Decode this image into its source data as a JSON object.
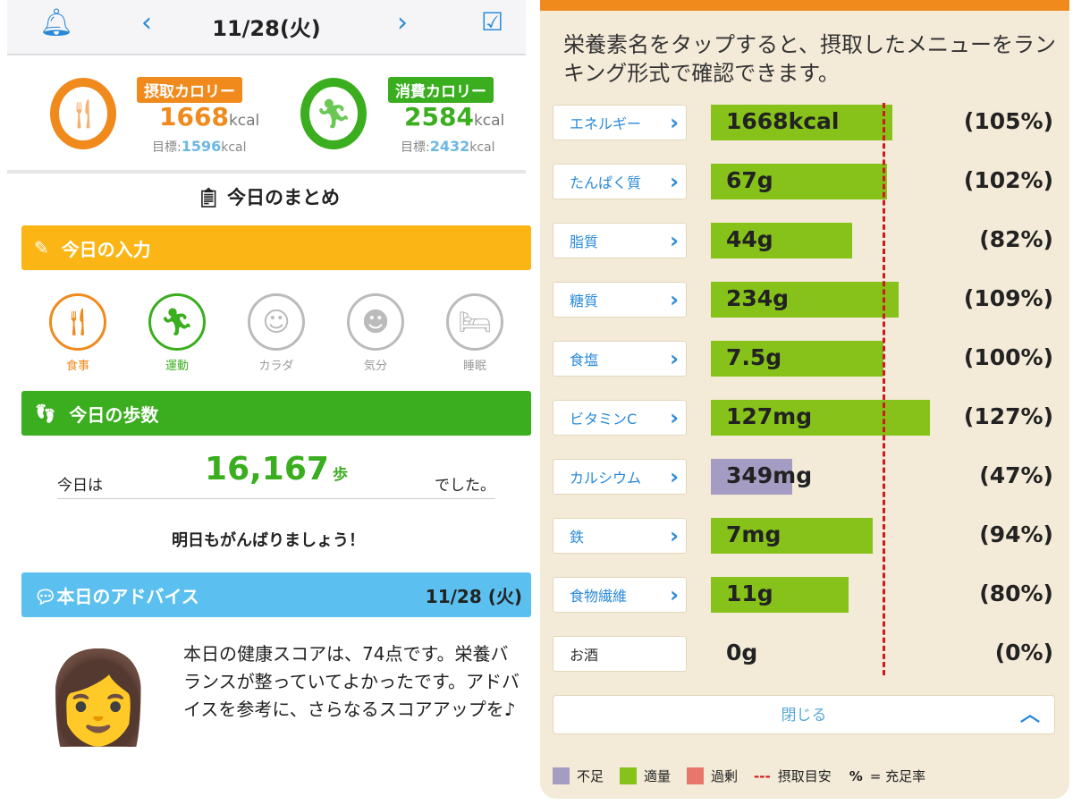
{
  "header": {
    "date": "11/28(火)"
  },
  "calories": {
    "intake": {
      "label": "摂取カロリー",
      "value": "1668",
      "unit": "kcal",
      "goal_label": "目標:",
      "goal": "1596",
      "goal_unit": "kcal",
      "color": "#f08a1c"
    },
    "burned": {
      "label": "消費カロリー",
      "value": "2584",
      "unit": "kcal",
      "goal_label": "目標:",
      "goal": "2432",
      "goal_unit": "kcal",
      "color": "#3aae1e"
    }
  },
  "summary_title": "今日のまとめ",
  "input_section": {
    "title": "今日の入力",
    "items": [
      {
        "label": "食事",
        "color": "#f08a1c"
      },
      {
        "label": "運動",
        "color": "#3aae1e"
      },
      {
        "label": "カラダ",
        "color": "#bbbbbb"
      },
      {
        "label": "気分",
        "color": "#bbbbbb"
      },
      {
        "label": "睡眠",
        "color": "#bbbbbb"
      }
    ]
  },
  "steps": {
    "title": "今日の歩数",
    "prefix": "今日は",
    "value": "16,167",
    "unit": "歩",
    "suffix": "でした。",
    "message": "明日もがんばりましょう！"
  },
  "advice": {
    "title": "本日のアドバイス",
    "date": "11/28 (火)",
    "text": "本日の健康スコアは、74点です。栄養バランスが整っていてよかったです。アドバイスを参考に、さらなるスコアアップを♪"
  },
  "nutrients": {
    "instruction": "栄養素名をタップすると、摂取したメニューをランキング形式で確認できます。",
    "items": [
      {
        "name": "エネルギー",
        "value": "1668kcal",
        "percent": 105,
        "pct_label": "(105%)",
        "status": "適量"
      },
      {
        "name": "たんぱく質",
        "value": "67g",
        "percent": 102,
        "pct_label": "(102%)",
        "status": "適量"
      },
      {
        "name": "脂質",
        "value": "44g",
        "percent": 82,
        "pct_label": "(82%)",
        "status": "適量"
      },
      {
        "name": "糖質",
        "value": "234g",
        "percent": 109,
        "pct_label": "(109%)",
        "status": "適量"
      },
      {
        "name": "食塩",
        "value": "7.5g",
        "percent": 100,
        "pct_label": "(100%)",
        "status": "適量"
      },
      {
        "name": "ビタミンC",
        "value": "127mg",
        "percent": 127,
        "pct_label": "(127%)",
        "status": "適量"
      },
      {
        "name": "カルシウム",
        "value": "349mg",
        "percent": 47,
        "pct_label": "(47%)",
        "status": "不足"
      },
      {
        "name": "鉄",
        "value": "7mg",
        "percent": 94,
        "pct_label": "(94%)",
        "status": "適量"
      },
      {
        "name": "食物繊維",
        "value": "11g",
        "percent": 80,
        "pct_label": "(80%)",
        "status": "適量"
      },
      {
        "name": "お酒",
        "value": "0g",
        "percent": 0,
        "pct_label": "(0%)",
        "status": "none"
      }
    ],
    "close_label": "閉じる",
    "legend": {
      "short": "不足",
      "ok": "適量",
      "over": "過剰",
      "target": "摂取目安",
      "pct_symbol": "%",
      "pct_desc": "= 充足率"
    },
    "colors": {
      "不足": "#a59cc4",
      "適量": "#86c21a",
      "過剰": "#e8776b",
      "target": "#d01a1a"
    }
  }
}
